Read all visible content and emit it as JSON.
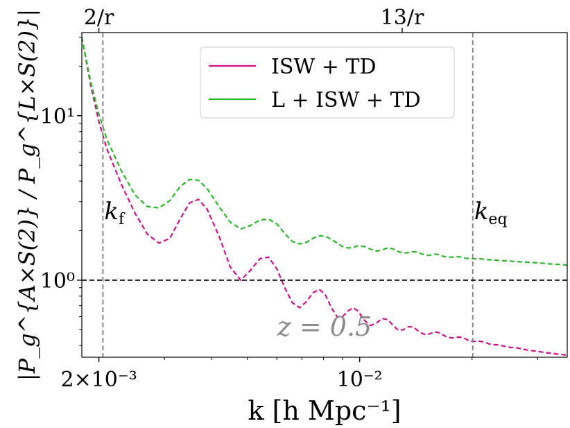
{
  "chart_data": {
    "type": "line",
    "xscale": "log",
    "yscale": "log",
    "xlim": [
      0.0018,
      0.036
    ],
    "ylim": [
      0.34,
      32
    ],
    "xlabel": "k [h Mpc⁻¹]",
    "ylabel": "|P_g^{A×S(2)} / P_g^{L×S(2)}|",
    "x_ticks": [
      {
        "value": 0.002,
        "label": "2×10⁻³"
      },
      {
        "value": 0.01,
        "label": "10⁻²"
      }
    ],
    "y_ticks": [
      {
        "value": 1,
        "label": "10⁰"
      },
      {
        "value": 10,
        "label": "10¹"
      }
    ],
    "top_ticks": [
      {
        "value": 0.002,
        "label": "2/r"
      },
      {
        "value": 0.013,
        "label": "13/r"
      }
    ],
    "vlines": [
      {
        "x": 0.00205,
        "label": "k_f",
        "sub": "f",
        "main": "k"
      },
      {
        "x": 0.0201,
        "label": "k_eq",
        "sub": "eq",
        "main": "k"
      }
    ],
    "hline": {
      "y": 1.0
    },
    "annotation": "z = 0.5",
    "series": [
      {
        "name": "ISW + TD",
        "color": "#cc1186",
        "x": [
          0.0018,
          0.0019,
          0.002,
          0.0021,
          0.0023,
          0.0025,
          0.0027,
          0.0029,
          0.0031,
          0.0033,
          0.0035,
          0.0037,
          0.0039,
          0.0042,
          0.0045,
          0.0048,
          0.0051,
          0.0054,
          0.0057,
          0.006,
          0.0063,
          0.0066,
          0.0069,
          0.0072,
          0.0075,
          0.0078,
          0.0081,
          0.0084,
          0.0087,
          0.009,
          0.0093,
          0.0096,
          0.0099,
          0.0103,
          0.0107,
          0.0111,
          0.0115,
          0.0119,
          0.0123,
          0.0127,
          0.0131,
          0.0135,
          0.0139,
          0.0143,
          0.0147,
          0.0151,
          0.0155,
          0.0159,
          0.0163,
          0.0167,
          0.0172,
          0.0177,
          0.0182,
          0.0187,
          0.0192,
          0.0198,
          0.0204,
          0.021,
          0.0216,
          0.0222,
          0.0228,
          0.0234,
          0.024,
          0.0247,
          0.0254,
          0.0261,
          0.0268,
          0.0275,
          0.0283,
          0.0291,
          0.0299,
          0.0307,
          0.0316,
          0.0325,
          0.0334,
          0.0343,
          0.0352,
          0.036
        ],
        "y": [
          30,
          15.5,
          9.2,
          6.3,
          3.8,
          2.55,
          1.9,
          1.68,
          1.8,
          2.35,
          2.95,
          3.1,
          2.7,
          1.85,
          1.2,
          1.0,
          1.15,
          1.35,
          1.38,
          1.17,
          0.9,
          0.73,
          0.68,
          0.74,
          0.84,
          0.88,
          0.81,
          0.68,
          0.6,
          0.6,
          0.65,
          0.68,
          0.65,
          0.57,
          0.53,
          0.55,
          0.585,
          0.575,
          0.53,
          0.495,
          0.5,
          0.52,
          0.52,
          0.495,
          0.475,
          0.465,
          0.475,
          0.485,
          0.48,
          0.465,
          0.45,
          0.445,
          0.45,
          0.45,
          0.44,
          0.425,
          0.425,
          0.425,
          0.42,
          0.41,
          0.405,
          0.405,
          0.4,
          0.395,
          0.39,
          0.39,
          0.385,
          0.38,
          0.375,
          0.372,
          0.37,
          0.366,
          0.362,
          0.36,
          0.357,
          0.354,
          0.352,
          0.35
        ]
      },
      {
        "name": "L + ISW + TD",
        "color": "#2ab82a",
        "x": [
          0.0018,
          0.0019,
          0.002,
          0.0021,
          0.0023,
          0.0025,
          0.0027,
          0.0029,
          0.0031,
          0.0033,
          0.0035,
          0.0037,
          0.0039,
          0.0042,
          0.0045,
          0.0048,
          0.0051,
          0.0054,
          0.0057,
          0.006,
          0.0063,
          0.0066,
          0.0069,
          0.0072,
          0.0075,
          0.0078,
          0.0081,
          0.0084,
          0.0087,
          0.009,
          0.0093,
          0.0096,
          0.0099,
          0.0103,
          0.0107,
          0.0111,
          0.0115,
          0.0119,
          0.0123,
          0.0127,
          0.0131,
          0.0135,
          0.0139,
          0.0143,
          0.0147,
          0.0151,
          0.0155,
          0.0159,
          0.0163,
          0.0167,
          0.0172,
          0.0177,
          0.0182,
          0.0187,
          0.0192,
          0.0198,
          0.0204,
          0.021,
          0.0216,
          0.0222,
          0.0228,
          0.0234,
          0.024,
          0.0247,
          0.0254,
          0.0261,
          0.0268,
          0.0275,
          0.0283,
          0.0291,
          0.0299,
          0.0307,
          0.0316,
          0.0325,
          0.0334,
          0.0343,
          0.0352,
          0.036
        ],
        "y": [
          30,
          16.2,
          10.2,
          7.2,
          4.6,
          3.3,
          2.8,
          2.75,
          3.05,
          3.7,
          4.1,
          4.05,
          3.6,
          2.8,
          2.25,
          2.05,
          2.15,
          2.32,
          2.35,
          2.2,
          1.92,
          1.72,
          1.66,
          1.7,
          1.8,
          1.86,
          1.85,
          1.77,
          1.68,
          1.6,
          1.57,
          1.58,
          1.62,
          1.6,
          1.54,
          1.5,
          1.53,
          1.57,
          1.55,
          1.49,
          1.46,
          1.47,
          1.49,
          1.48,
          1.44,
          1.42,
          1.42,
          1.44,
          1.43,
          1.4,
          1.38,
          1.38,
          1.39,
          1.38,
          1.36,
          1.35,
          1.35,
          1.35,
          1.34,
          1.33,
          1.33,
          1.32,
          1.315,
          1.31,
          1.305,
          1.3,
          1.295,
          1.29,
          1.285,
          1.28,
          1.275,
          1.27,
          1.262,
          1.255,
          1.25,
          1.245,
          1.24,
          1.235
        ]
      }
    ]
  }
}
